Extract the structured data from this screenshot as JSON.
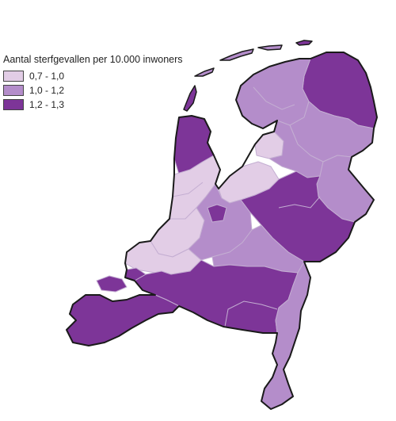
{
  "legend": {
    "title": "Aantal sterfgevallen per 10.000 inwoners",
    "classes": [
      {
        "label": "0,7 - 1,0",
        "color": "#e2cde6"
      },
      {
        "label": "1,0 - 1,2",
        "color": "#b48dca"
      },
      {
        "label": "1,2 - 1,3",
        "color": "#7d3598"
      }
    ]
  },
  "map": {
    "boundary_color": "#1a1a1a",
    "internal_boundary_color": "#c4aed2",
    "regions": [
      {
        "name": "groningen",
        "class": 2
      },
      {
        "name": "friesland",
        "class": 1
      },
      {
        "name": "drenthe",
        "class": 1
      },
      {
        "name": "noordoostpolder",
        "class": 0
      },
      {
        "name": "overijssel-west",
        "class": 1
      },
      {
        "name": "overijssel-oost",
        "class": 1
      },
      {
        "name": "flevoland-zuid",
        "class": 0
      },
      {
        "name": "noord-holland-noord",
        "class": 2
      },
      {
        "name": "noord-holland-zuid",
        "class": 0
      },
      {
        "name": "zuid-holland-noord",
        "class": 0
      },
      {
        "name": "zuid-holland-zuid",
        "class": 0
      },
      {
        "name": "utrecht",
        "class": 1
      },
      {
        "name": "gelderland-midden",
        "class": 2
      },
      {
        "name": "gelderland-oost",
        "class": 2
      },
      {
        "name": "gooi",
        "class": 2
      },
      {
        "name": "rivierenland",
        "class": 1
      },
      {
        "name": "zeeland",
        "class": 2
      },
      {
        "name": "noord-brabant",
        "class": 2
      },
      {
        "name": "limburg",
        "class": 1
      }
    ]
  }
}
